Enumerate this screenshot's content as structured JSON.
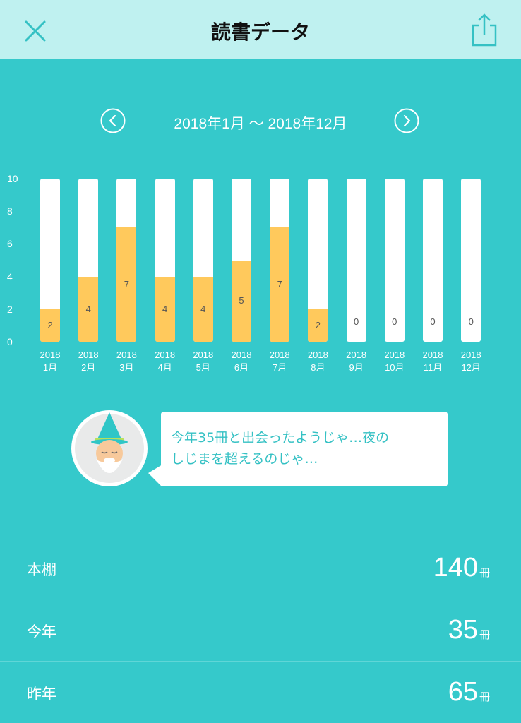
{
  "header": {
    "title": "読書データ",
    "close_icon": "close-icon",
    "share_icon": "share-icon"
  },
  "range": {
    "text": "2018年1月 〜 2018年12月",
    "prev_icon": "chevron-left-icon",
    "next_icon": "chevron-right-icon"
  },
  "chart_data": {
    "type": "bar",
    "ylim": [
      0,
      10
    ],
    "yticks": [
      "10",
      "8",
      "6",
      "4",
      "2",
      "0"
    ],
    "categories": [
      {
        "year": "2018",
        "month": "1月"
      },
      {
        "year": "2018",
        "month": "2月"
      },
      {
        "year": "2018",
        "month": "3月"
      },
      {
        "year": "2018",
        "month": "4月"
      },
      {
        "year": "2018",
        "month": "5月"
      },
      {
        "year": "2018",
        "month": "6月"
      },
      {
        "year": "2018",
        "month": "7月"
      },
      {
        "year": "2018",
        "month": "8月"
      },
      {
        "year": "2018",
        "month": "9月"
      },
      {
        "year": "2018",
        "month": "10月"
      },
      {
        "year": "2018",
        "month": "11月"
      },
      {
        "year": "2018",
        "month": "12月"
      }
    ],
    "values": [
      2,
      4,
      7,
      4,
      4,
      5,
      7,
      2,
      0,
      0,
      0,
      0
    ],
    "colors": {
      "filled": "#ffc95c",
      "empty": "#ffffff"
    }
  },
  "message": {
    "avatar_icon": "wizard-avatar-icon",
    "text_line1": "今年35冊と出会ったようじゃ…夜の",
    "text_line2": "しじまを超えるのじゃ…"
  },
  "stats": [
    {
      "label": "本棚",
      "value": "140",
      "unit": "冊"
    },
    {
      "label": "今年",
      "value": "35",
      "unit": "冊"
    },
    {
      "label": "昨年",
      "value": "65",
      "unit": "冊"
    }
  ],
  "colors": {
    "background": "#35c9cb",
    "header_bg": "#bff1f0",
    "accent": "#35c1c4",
    "bar_fill": "#ffc95c"
  }
}
